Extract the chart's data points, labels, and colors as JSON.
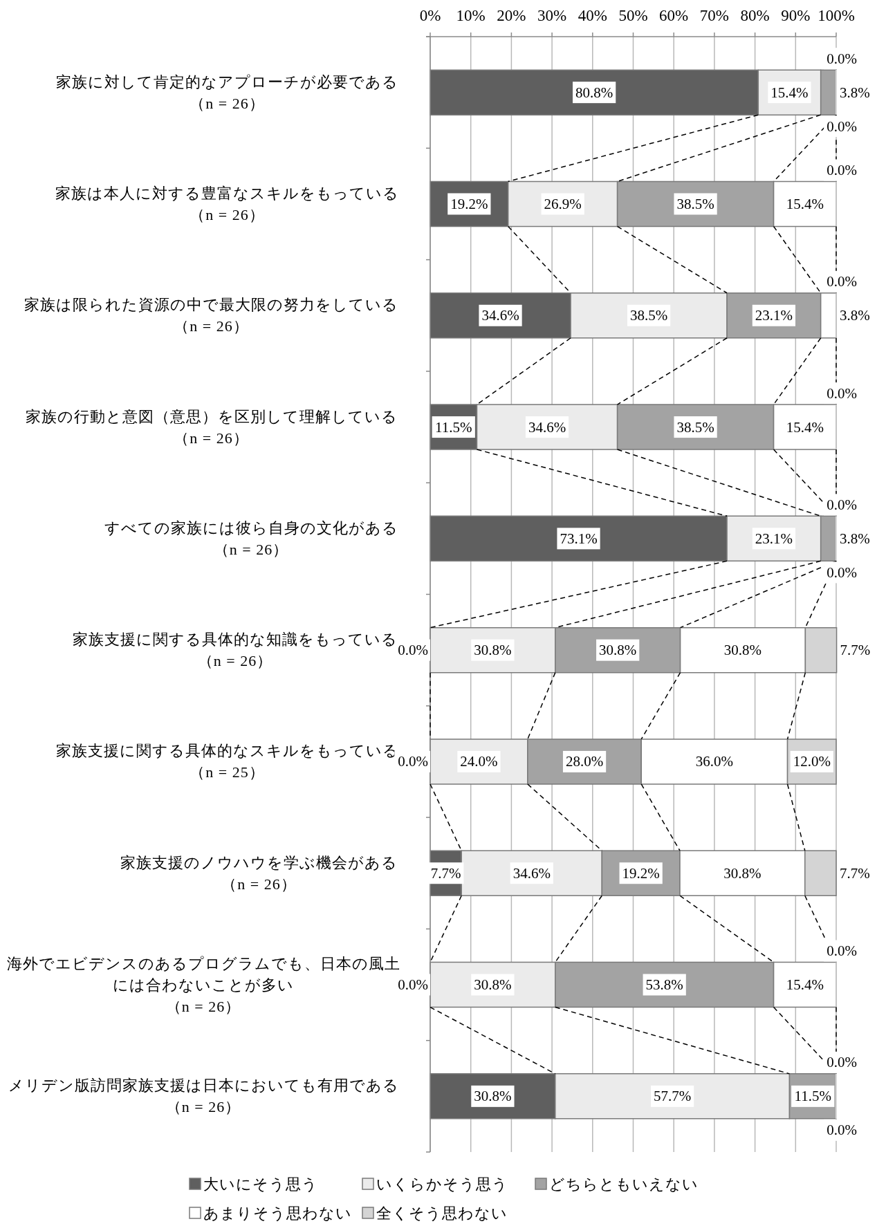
{
  "chart_data": {
    "type": "bar",
    "orientation": "horizontal",
    "stacked": true,
    "categories": [
      "家族に対して肯定的なアプローチが必要である（n = 26）",
      "家族は本人に対する豊富なスキルをもっている（n = 26）",
      "家族は限られた資源の中で最大限の努力をしている（n = 26）",
      "家族の行動と意図（意思）を区別して理解している（n = 26）",
      "すべての家族には彼ら自身の文化がある（n = 26）",
      "家族支援に関する具体的な知識をもっている（n = 26）",
      "家族支援に関する具体的なスキルをもっている（n = 25）",
      "家族支援のノウハウを学ぶ機会がある（n = 26）",
      "海外でエビデンスのあるプログラムでも、日本の風土には合わないことが多い（n = 26）",
      "メリデン版訪問家族支援は日本においても有用である（n = 26）"
    ],
    "series": [
      {
        "name": "大いにそう思う",
        "color": "#5f5f5f",
        "values": [
          80.8,
          19.2,
          34.6,
          11.5,
          73.1,
          0.0,
          0.0,
          7.7,
          0.0,
          30.8
        ],
        "value_labels": [
          "80.8%",
          "19.2%",
          "34.6%",
          "11.5%",
          "73.1%",
          "0.0%",
          "0.0%",
          "7.7%",
          "0.0%",
          "30.8%"
        ]
      },
      {
        "name": "いくらかそう思う",
        "color": "#ebebeb",
        "values": [
          15.4,
          26.9,
          38.5,
          34.6,
          23.1,
          30.8,
          24.0,
          34.6,
          30.8,
          57.7
        ],
        "value_labels": [
          "15.4%",
          "26.9%",
          "38.5%",
          "34.6%",
          "23.1%",
          "30.8%",
          "24.0%",
          "34.6%",
          "30.8%",
          "57.7%"
        ]
      },
      {
        "name": "どちらともいえない",
        "color": "#a3a3a3",
        "values": [
          3.8,
          38.5,
          23.1,
          38.5,
          3.8,
          30.8,
          28.0,
          19.2,
          53.8,
          11.5
        ],
        "value_labels": [
          "3.8%",
          "38.5%",
          "23.1%",
          "38.5%",
          "3.8%",
          "30.8%",
          "28.0%",
          "19.2%",
          "53.8%",
          "11.5%"
        ]
      },
      {
        "name": "あまりそう思わない",
        "color": "#ffffff",
        "values": [
          0.0,
          15.4,
          3.8,
          15.4,
          0.0,
          30.8,
          36.0,
          30.8,
          15.4,
          0.0
        ],
        "value_labels": [
          "0.0%",
          "15.4%",
          "3.8%",
          "15.4%",
          "0.0%",
          "30.8%",
          "36.0%",
          "30.8%",
          "15.4%",
          "0.0%"
        ]
      },
      {
        "name": "全くそう思わない",
        "color": "#d4d4d4",
        "values": [
          0.0,
          0.0,
          0.0,
          0.0,
          0.0,
          7.7,
          12.0,
          7.7,
          0.0,
          0.0
        ],
        "value_labels": [
          "0.0%",
          "0.0%",
          "0.0%",
          "0.0%",
          "0.0%",
          "7.7%",
          "12.0%",
          "7.7%",
          "0.0%",
          "0.0%"
        ]
      }
    ],
    "xlim": [
      0,
      100
    ],
    "xticks": [
      {
        "value": 0,
        "label": "0%"
      },
      {
        "value": 10,
        "label": "10%"
      },
      {
        "value": 20,
        "label": "20%"
      },
      {
        "value": 30,
        "label": "30%"
      },
      {
        "value": 40,
        "label": "40%"
      },
      {
        "value": 50,
        "label": "50%"
      },
      {
        "value": 60,
        "label": "60%"
      },
      {
        "value": 70,
        "label": "70%"
      },
      {
        "value": 80,
        "label": "80%"
      },
      {
        "value": 90,
        "label": "90%"
      },
      {
        "value": 100,
        "label": "100%"
      }
    ],
    "grid": "x",
    "legend": "bottom"
  }
}
